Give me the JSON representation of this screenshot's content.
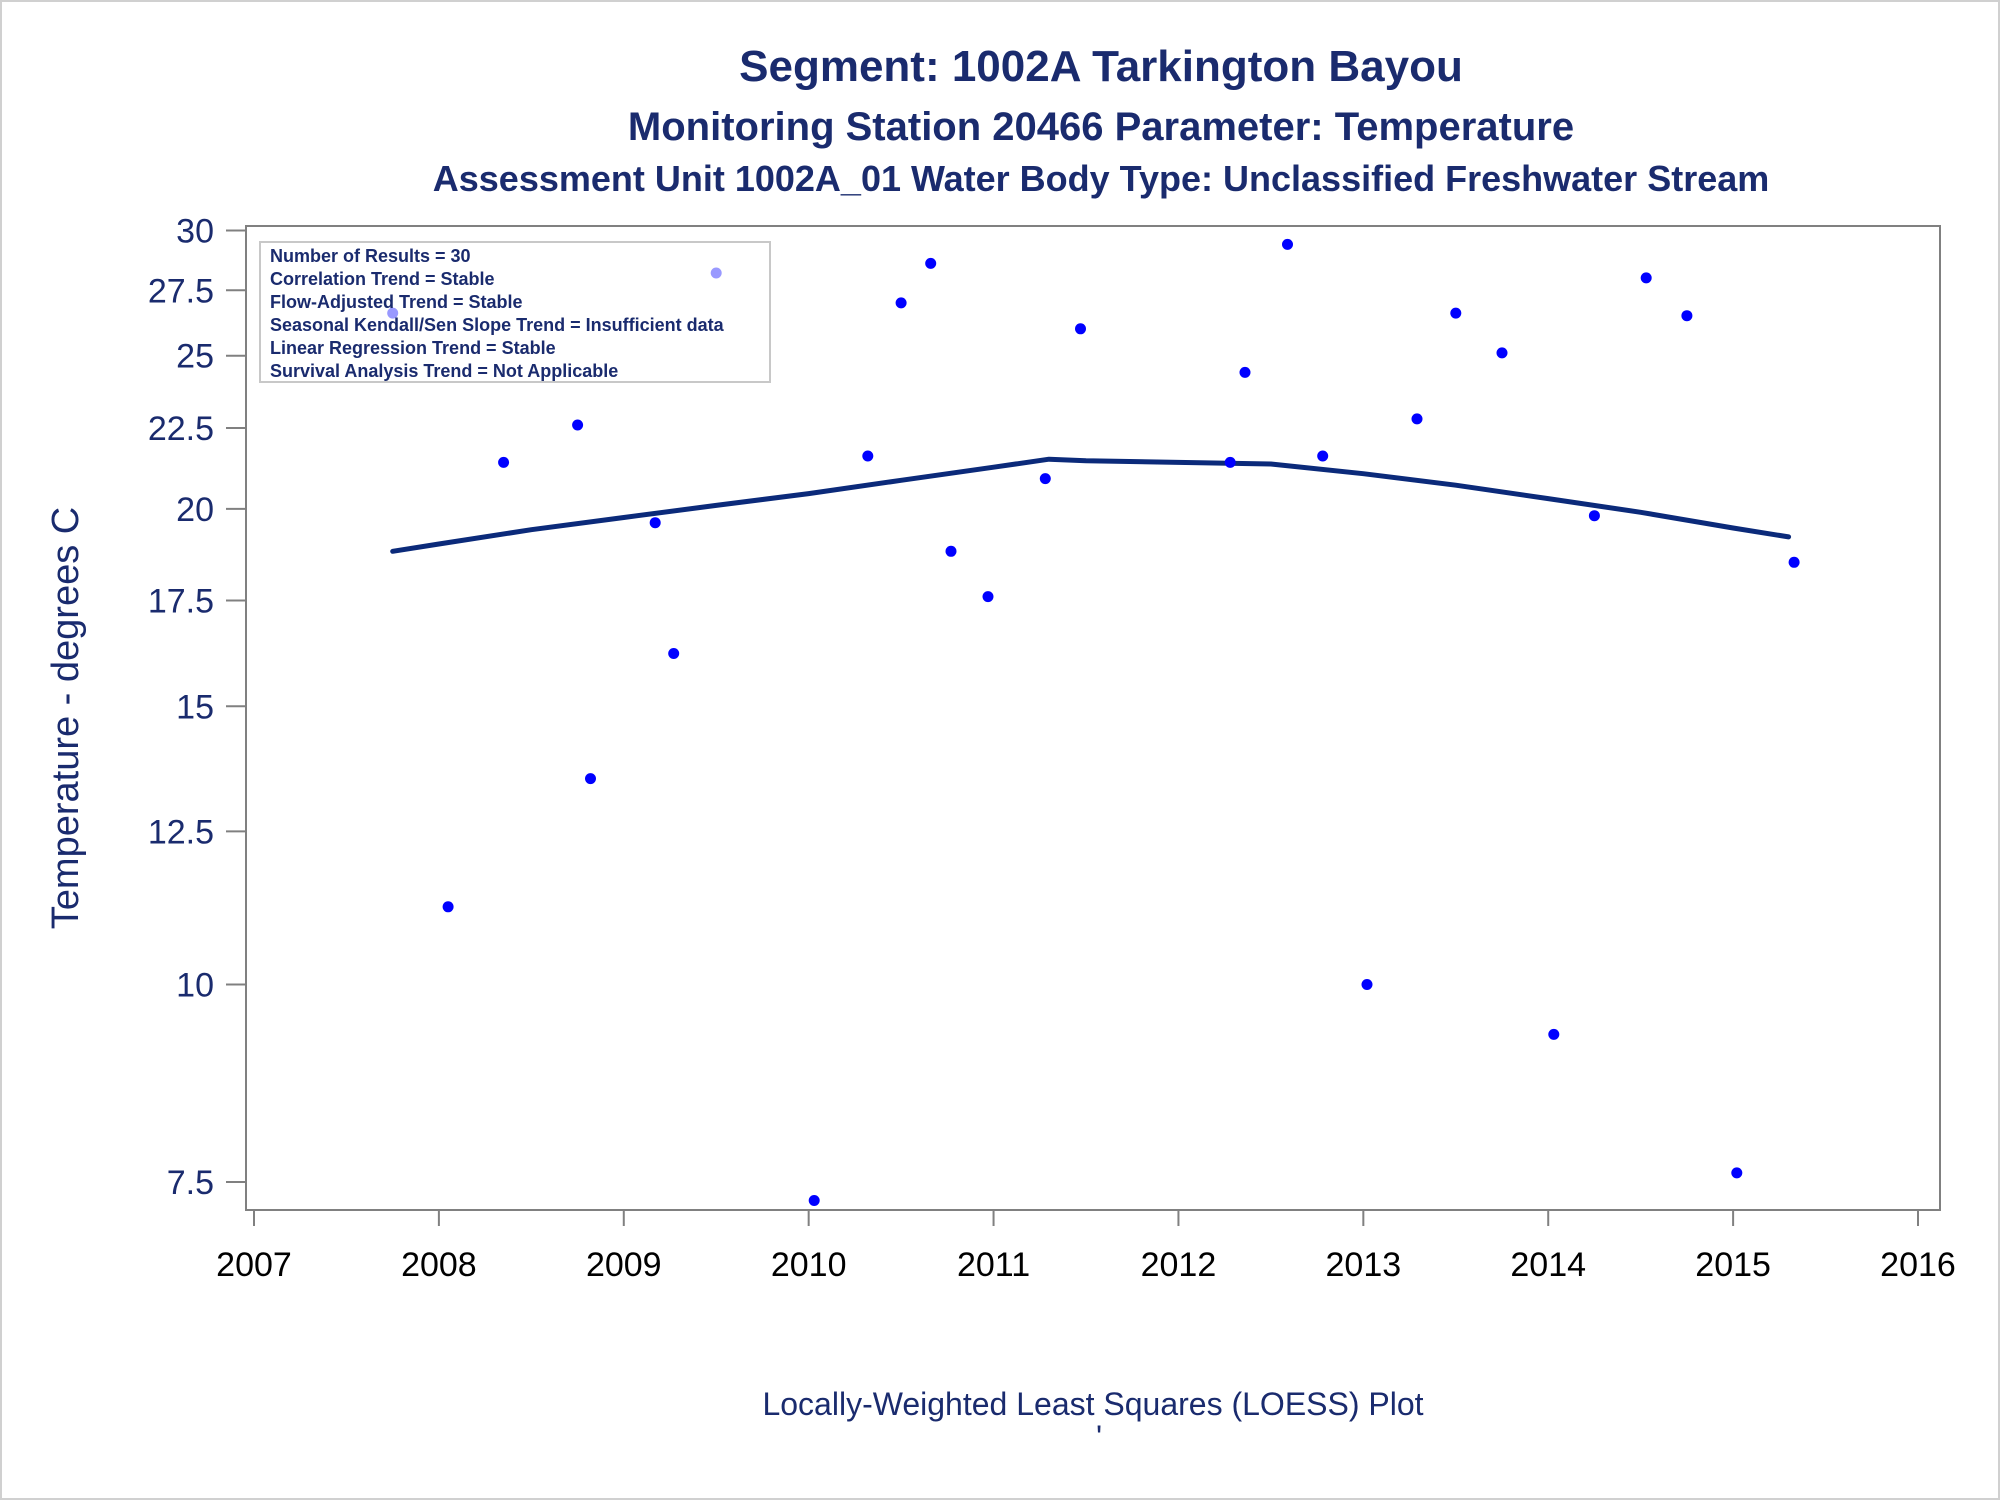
{
  "title": "Segment: 1002A  Tarkington Bayou",
  "subtitle": "Monitoring Station 20466 Parameter: Temperature",
  "subtitle2": "Assessment Unit 1002A_01   Water Body Type: Unclassified Freshwater Stream",
  "ylabel": "Temperature - degrees C",
  "footnote": "Locally-Weighted Least Squares (LOESS) Plot",
  "footnote_mark": "'",
  "stats_box": [
    "Number of Results = 30",
    "Correlation Trend = Stable",
    "Flow-Adjusted Trend = Stable",
    "Seasonal Kendall/Sen Slope Trend = Insufficient data",
    "Linear Regression Trend = Stable",
    "Survival Analysis Trend = Not Applicable"
  ],
  "colors": {
    "text": "#1a2b6e",
    "points": "#0000ff",
    "loess_line": "#0b2a7a",
    "axis": "#808080"
  },
  "chart_data": {
    "type": "scatter",
    "x_scale": "linear",
    "y_scale": "log",
    "xlim": [
      2007,
      2016
    ],
    "ylim": [
      7.2,
      30.2
    ],
    "x_ticks": [
      2007,
      2008,
      2009,
      2010,
      2011,
      2012,
      2013,
      2014,
      2015,
      2016
    ],
    "x_tick_labels": [
      "2007",
      "2008",
      "2009",
      "2010",
      "2011",
      "2012",
      "2013",
      "2014",
      "2015",
      "2016"
    ],
    "y_ticks": [
      7.5,
      10,
      12.5,
      15,
      17.5,
      20,
      22.5,
      25,
      27.5,
      30
    ],
    "y_tick_labels": [
      "7.5",
      "10",
      "12.5",
      "15",
      "17.5",
      "20",
      "22.5",
      "25",
      "27.5",
      "30"
    ],
    "series": [
      {
        "kind": "points",
        "points": [
          {
            "x": 2007.75,
            "y": 26.6
          },
          {
            "x": 2008.05,
            "y": 11.2
          },
          {
            "x": 2008.35,
            "y": 21.4
          },
          {
            "x": 2008.75,
            "y": 22.6
          },
          {
            "x": 2008.82,
            "y": 13.5
          },
          {
            "x": 2009.17,
            "y": 19.6
          },
          {
            "x": 2009.27,
            "y": 16.2
          },
          {
            "x": 2009.5,
            "y": 28.2
          },
          {
            "x": 2010.03,
            "y": 7.3
          },
          {
            "x": 2010.32,
            "y": 21.6
          },
          {
            "x": 2010.5,
            "y": 27.0
          },
          {
            "x": 2010.66,
            "y": 28.6
          },
          {
            "x": 2010.77,
            "y": 18.8
          },
          {
            "x": 2010.97,
            "y": 17.6
          },
          {
            "x": 2011.28,
            "y": 20.9
          },
          {
            "x": 2011.47,
            "y": 26.0
          },
          {
            "x": 2012.28,
            "y": 21.4
          },
          {
            "x": 2012.36,
            "y": 24.4
          },
          {
            "x": 2012.59,
            "y": 29.4
          },
          {
            "x": 2012.78,
            "y": 21.6
          },
          {
            "x": 2013.02,
            "y": 10.0
          },
          {
            "x": 2013.29,
            "y": 22.8
          },
          {
            "x": 2013.5,
            "y": 26.6
          },
          {
            "x": 2013.75,
            "y": 25.1
          },
          {
            "x": 2014.03,
            "y": 9.3
          },
          {
            "x": 2014.25,
            "y": 19.8
          },
          {
            "x": 2014.53,
            "y": 28.0
          },
          {
            "x": 2014.75,
            "y": 26.5
          },
          {
            "x": 2015.02,
            "y": 7.6
          },
          {
            "x": 2015.33,
            "y": 18.5
          }
        ]
      },
      {
        "kind": "loess",
        "points": [
          {
            "x": 2007.75,
            "y": 18.8
          },
          {
            "x": 2008.0,
            "y": 19.0
          },
          {
            "x": 2008.5,
            "y": 19.4
          },
          {
            "x": 2009.0,
            "y": 19.75
          },
          {
            "x": 2009.5,
            "y": 20.1
          },
          {
            "x": 2010.0,
            "y": 20.45
          },
          {
            "x": 2010.5,
            "y": 20.85
          },
          {
            "x": 2011.0,
            "y": 21.25
          },
          {
            "x": 2011.3,
            "y": 21.5
          },
          {
            "x": 2011.5,
            "y": 21.45
          },
          {
            "x": 2012.0,
            "y": 21.4
          },
          {
            "x": 2012.5,
            "y": 21.35
          },
          {
            "x": 2013.0,
            "y": 21.05
          },
          {
            "x": 2013.5,
            "y": 20.7
          },
          {
            "x": 2014.0,
            "y": 20.3
          },
          {
            "x": 2014.5,
            "y": 19.9
          },
          {
            "x": 2015.0,
            "y": 19.45
          },
          {
            "x": 2015.3,
            "y": 19.2
          }
        ]
      }
    ],
    "grid": false,
    "legend": "none"
  }
}
